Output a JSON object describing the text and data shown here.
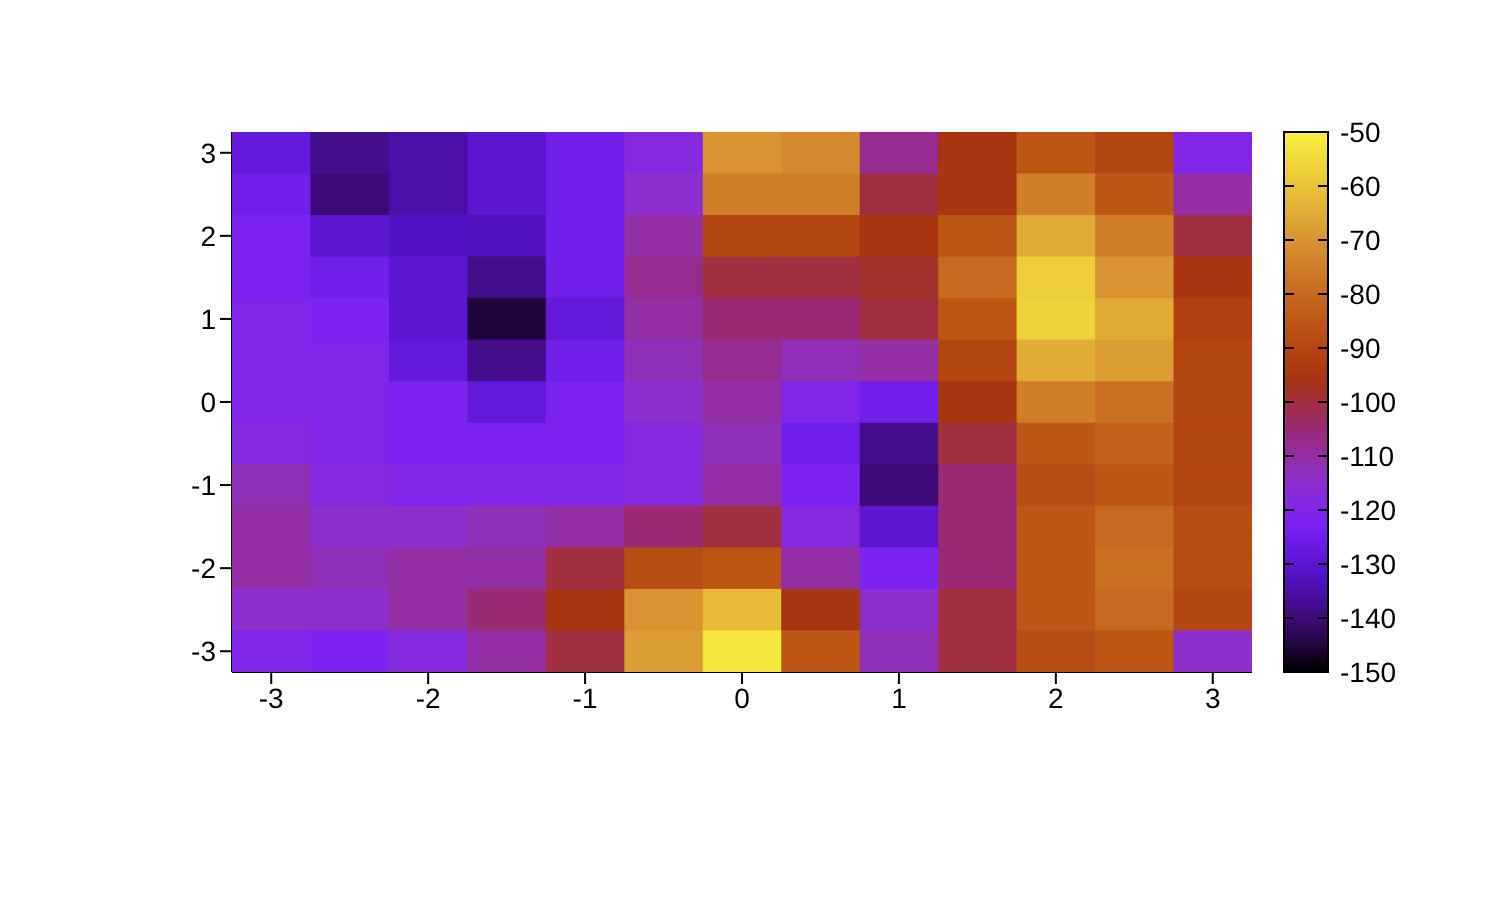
{
  "chart_data": {
    "type": "heatmap",
    "categories": [
      "-3",
      null,
      "-2",
      null,
      "-1",
      null,
      "0",
      null,
      "1",
      null,
      "2",
      null,
      "3"
    ],
    "y_categories": [
      "3",
      null,
      "2",
      null,
      "1",
      null,
      "0",
      null,
      "-1",
      null,
      "-2",
      null,
      "-3"
    ],
    "clim": [
      -150,
      -50
    ],
    "cticks": [
      -150,
      -140,
      -130,
      -120,
      -110,
      -100,
      -90,
      -80,
      -70,
      -60,
      -50
    ],
    "cells": [
      [
        -128,
        -138,
        -135,
        -130,
        -125,
        -118,
        -70,
        -72,
        -108,
        -95,
        -85,
        -90,
        -120
      ],
      [
        -125,
        -140,
        -135,
        -130,
        -125,
        -115,
        -75,
        -75,
        -100,
        -95,
        -75,
        -85,
        -110
      ],
      [
        -122,
        -130,
        -132,
        -133,
        -125,
        -110,
        -90,
        -90,
        -95,
        -85,
        -65,
        -75,
        -100
      ],
      [
        -122,
        -125,
        -130,
        -138,
        -125,
        -108,
        -100,
        -100,
        -98,
        -80,
        -58,
        -70,
        -95
      ],
      [
        -120,
        -122,
        -130,
        -145,
        -128,
        -110,
        -105,
        -105,
        -100,
        -85,
        -57,
        -65,
        -92
      ],
      [
        -120,
        -120,
        -128,
        -138,
        -125,
        -112,
        -108,
        -112,
        -110,
        -90,
        -65,
        -68,
        -90
      ],
      [
        -120,
        -120,
        -122,
        -128,
        -122,
        -115,
        -110,
        -120,
        -125,
        -95,
        -75,
        -78,
        -90
      ],
      [
        -118,
        -120,
        -122,
        -122,
        -122,
        -118,
        -112,
        -125,
        -138,
        -100,
        -85,
        -82,
        -90
      ],
      [
        -112,
        -118,
        -120,
        -120,
        -120,
        -118,
        -110,
        -122,
        -140,
        -105,
        -88,
        -85,
        -90
      ],
      [
        -110,
        -115,
        -115,
        -112,
        -110,
        -105,
        -100,
        -118,
        -130,
        -105,
        -85,
        -80,
        -88
      ],
      [
        -110,
        -112,
        -110,
        -110,
        -100,
        -88,
        -85,
        -110,
        -122,
        -105,
        -85,
        -78,
        -88
      ],
      [
        -115,
        -115,
        -110,
        -105,
        -95,
        -70,
        -62,
        -95,
        -115,
        -100,
        -85,
        -80,
        -90
      ],
      [
        -120,
        -122,
        -118,
        -110,
        -100,
        -68,
        -52,
        -85,
        -112,
        -100,
        -88,
        -85,
        -115
      ]
    ]
  }
}
